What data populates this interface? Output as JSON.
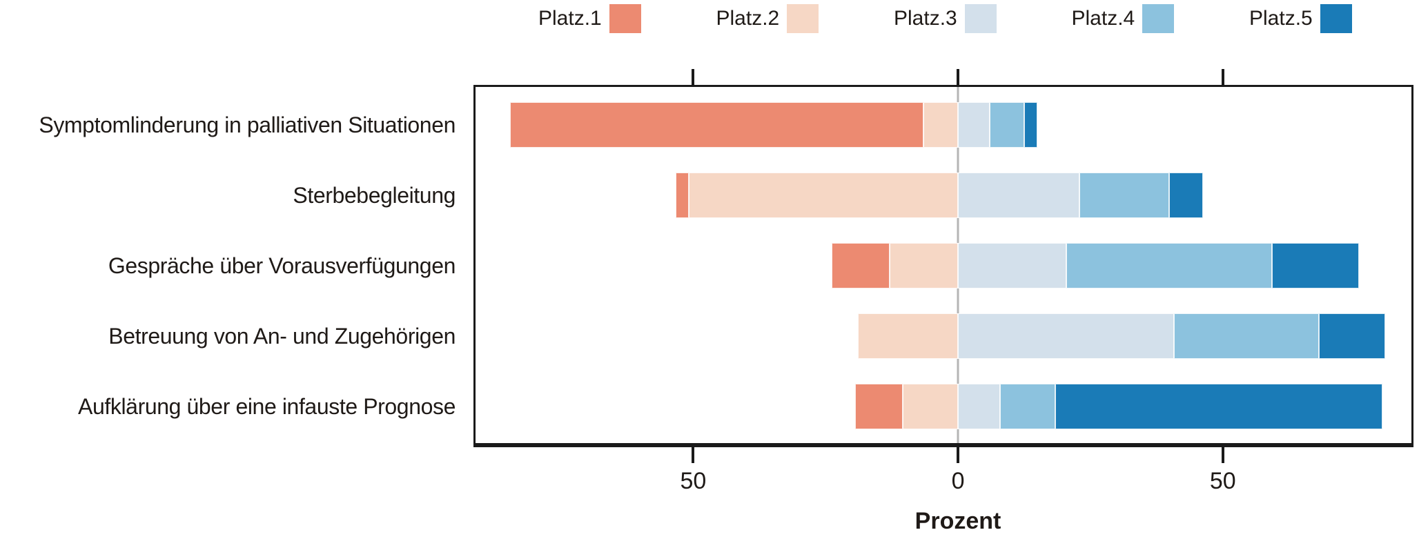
{
  "chart_data": {
    "type": "diverging-stacked-bar",
    "title": "",
    "xlabel": "Prozent",
    "unit": "percent",
    "categories": [
      "Symptomlinderung in palliativen Situationen",
      "Sterbebegleitung",
      "Gespräche über Vorausverfügungen",
      "Betreuung von An- und Zugehörigen",
      "Aufklärung über eine infauste Prognose"
    ],
    "series": [
      {
        "name": "Platz.1",
        "color": "#EC8A71",
        "values": [
          78.5,
          2.5,
          11,
          0,
          9
        ]
      },
      {
        "name": "Platz.2",
        "color": "#F6D7C5",
        "values": [
          6.5,
          51,
          13,
          19,
          10.5
        ]
      },
      {
        "name": "Platz.3",
        "color": "#D3E0EB",
        "values": [
          6,
          23,
          20.5,
          41,
          8
        ]
      },
      {
        "name": "Platz.4",
        "color": "#8CC2DE",
        "values": [
          6.5,
          17,
          39,
          27.5,
          10.5
        ]
      },
      {
        "name": "Platz.5",
        "color": "#1A7BB7",
        "values": [
          2.5,
          6.5,
          16.5,
          12.5,
          62
        ]
      }
    ],
    "negative_side_series": [
      "Platz.1",
      "Platz.2"
    ],
    "axis": {
      "xmin": -91.5,
      "xmax": 86,
      "ticks": [
        {
          "value": -50,
          "label": "50"
        },
        {
          "value": 0,
          "label": "0"
        },
        {
          "value": 50,
          "label": "50"
        }
      ],
      "grid": false,
      "zero_line": true
    },
    "legend_position": "top"
  },
  "colors": {
    "axis_line": "#1a1a1a",
    "zero_line": "#b5b5b5",
    "text": "#1f1a17",
    "background": "#ffffff"
  }
}
